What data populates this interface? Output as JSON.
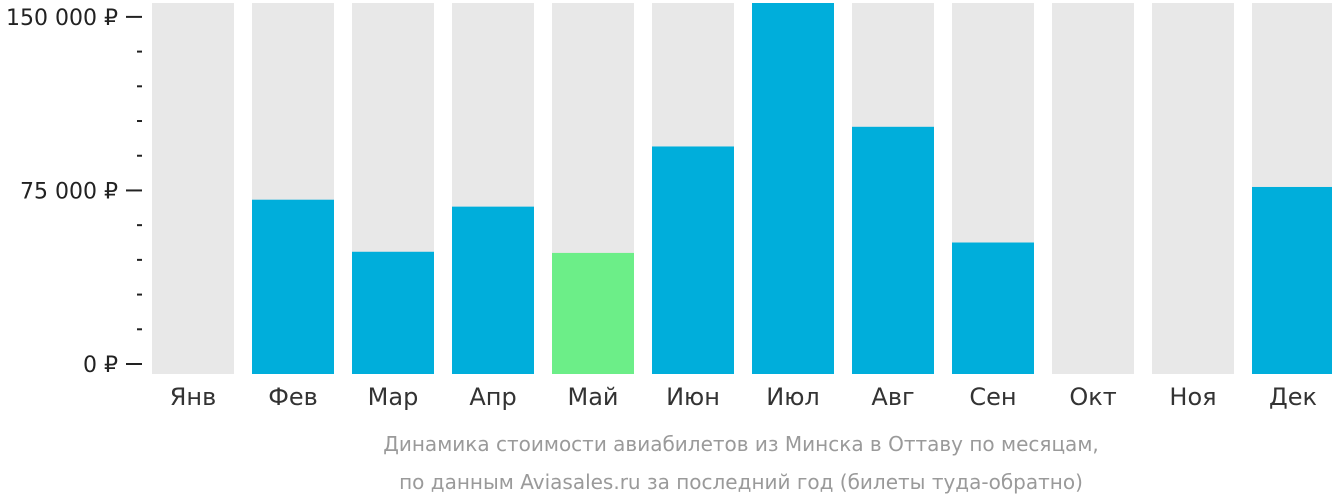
{
  "chart_data": {
    "type": "bar",
    "categories": [
      "Янв",
      "Фев",
      "Мар",
      "Апр",
      "Май",
      "Июн",
      "Июл",
      "Авг",
      "Сен",
      "Окт",
      "Ноя",
      "Дек"
    ],
    "values": [
      null,
      71000,
      48500,
      68000,
      48000,
      94000,
      156000,
      102500,
      52500,
      null,
      null,
      76500
    ],
    "ylim": [
      0,
      156000
    ],
    "yticks": [
      {
        "value": 0,
        "label": "0 ₽"
      },
      {
        "value": 75000,
        "label": "75 000 ₽"
      },
      {
        "value": 150000,
        "label": "150 000 ₽"
      }
    ],
    "minor_tick_step": 15000,
    "highlight_index": 4,
    "colors": {
      "bar": "#00aedb",
      "highlight": "#6cee88",
      "track": "#e8e8e8",
      "axis": "#222222"
    }
  },
  "caption": {
    "line1": "Динамика стоимости авиабилетов из Минска в Оттаву по месяцам,",
    "line2": "по данным Aviasales.ru за последний год (билеты туда-обратно)"
  }
}
